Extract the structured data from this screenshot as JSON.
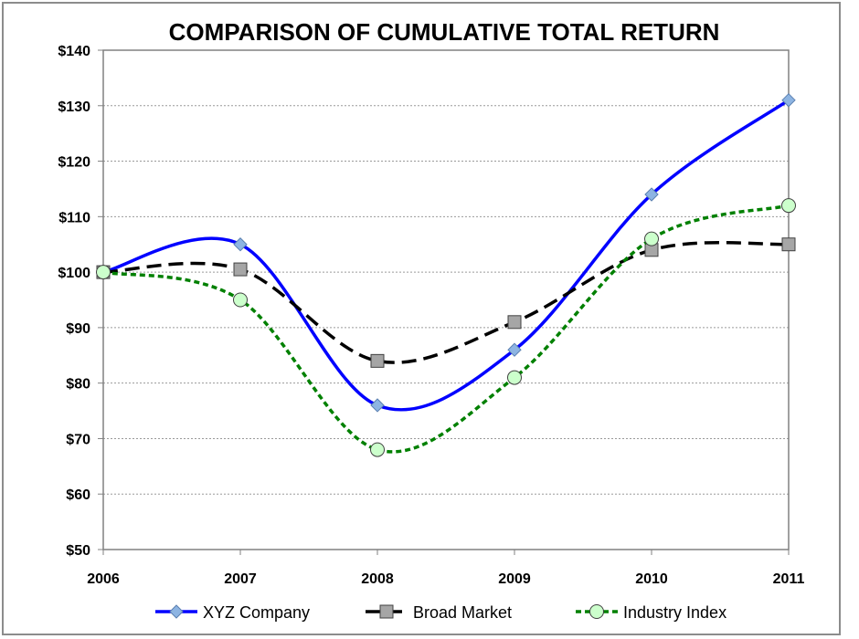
{
  "chart_data": {
    "type": "line",
    "title": "COMPARISON OF CUMULATIVE TOTAL RETURN",
    "categories": [
      "2006",
      "2007",
      "2008",
      "2009",
      "2010",
      "2011"
    ],
    "ylim": [
      50,
      140
    ],
    "yticks": [
      50,
      60,
      70,
      80,
      90,
      100,
      110,
      120,
      130,
      140
    ],
    "ytick_labels": [
      "$50",
      "$60",
      "$70",
      "$80",
      "$90",
      "$100",
      "$110",
      "$120",
      "$130",
      "$140"
    ],
    "grid": "horizontal",
    "legend_position": "bottom",
    "series": [
      {
        "name": "XYZ Company",
        "values": [
          100,
          105,
          76,
          86,
          114,
          131
        ],
        "color": "#0000ff",
        "dash": "solid",
        "marker": "diamond",
        "marker_color": "#8db4e2"
      },
      {
        "name": "Broad Market",
        "values": [
          100,
          100.5,
          84,
          91,
          104,
          105
        ],
        "color": "#000000",
        "dash": "dashed",
        "marker": "square",
        "marker_color": "#a6a6a6"
      },
      {
        "name": "Industry Index",
        "values": [
          100,
          95,
          68,
          81,
          106,
          112
        ],
        "color": "#008000",
        "dash": "dotted",
        "marker": "circle",
        "marker_color": "#ccffcc"
      }
    ]
  }
}
